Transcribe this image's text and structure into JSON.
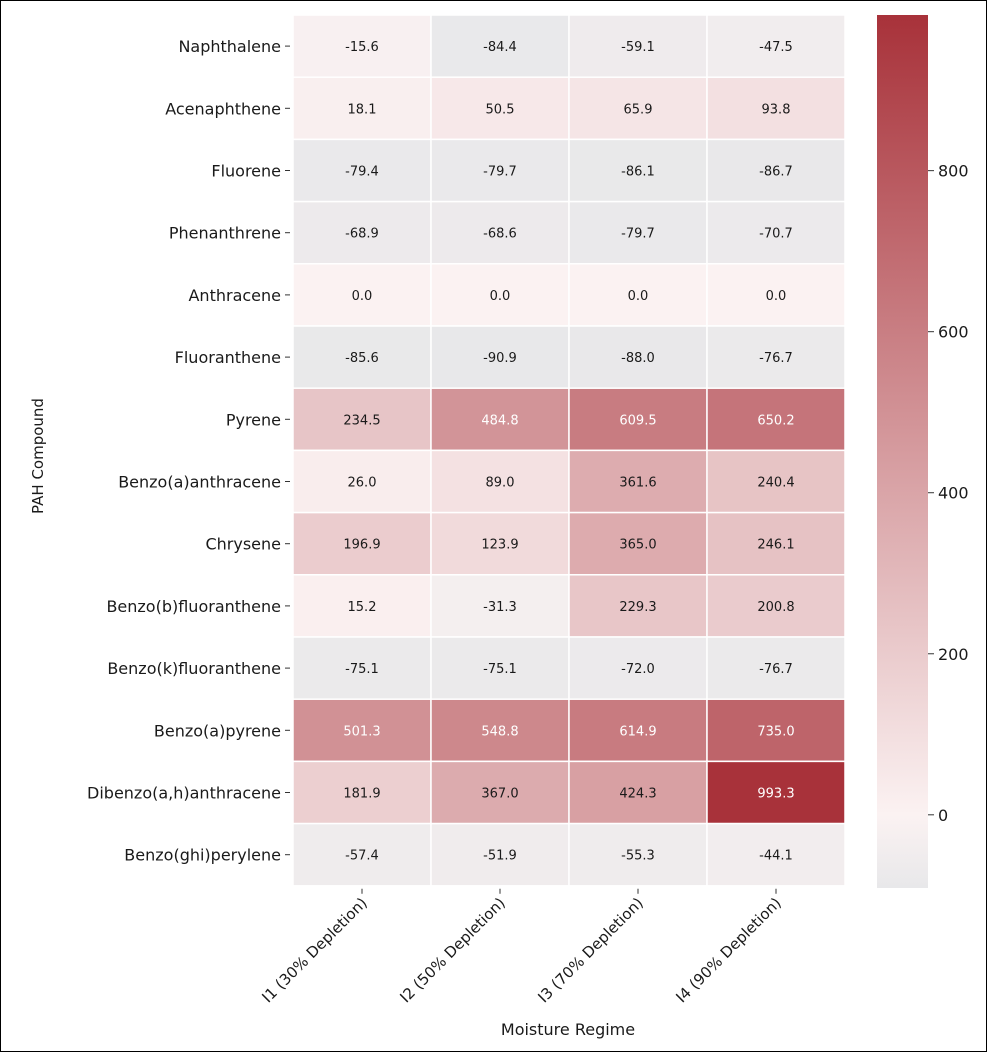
{
  "chart_data": {
    "type": "heatmap",
    "title": "",
    "xlabel": "Moisture Regime",
    "ylabel": "PAH Compound",
    "x_categories": [
      "I1 (30% Depletion)",
      "I2 (50% Depletion)",
      "I3 (70% Depletion)",
      "I4 (90% Depletion)"
    ],
    "y_categories": [
      "Naphthalene",
      "Acenaphthene",
      "Fluorene",
      "Phenanthrene",
      "Anthracene",
      "Fluoranthene",
      "Pyrene",
      "Benzo(a)anthracene",
      "Chrysene",
      "Benzo(b)fluoranthene",
      "Benzo(k)fluoranthene",
      "Benzo(a)pyrene",
      "Dibenzo(a,h)anthracene",
      "Benzo(ghi)perylene"
    ],
    "values": [
      [
        -15.6,
        -84.4,
        -59.1,
        -47.5
      ],
      [
        18.1,
        50.5,
        65.9,
        93.8
      ],
      [
        -79.4,
        -79.7,
        -86.1,
        -86.7
      ],
      [
        -68.9,
        -68.6,
        -79.7,
        -70.7
      ],
      [
        0.0,
        0.0,
        0.0,
        0.0
      ],
      [
        -85.6,
        -90.9,
        -88.0,
        -76.7
      ],
      [
        234.5,
        484.8,
        609.5,
        650.2
      ],
      [
        26.0,
        89.0,
        361.6,
        240.4
      ],
      [
        196.9,
        123.9,
        365.0,
        246.1
      ],
      [
        15.2,
        -31.3,
        229.3,
        200.8
      ],
      [
        -75.1,
        -75.1,
        -72.0,
        -76.7
      ],
      [
        501.3,
        548.8,
        614.9,
        735.0
      ],
      [
        181.9,
        367.0,
        424.3,
        993.3
      ],
      [
        -57.4,
        -51.9,
        -55.3,
        -44.1
      ]
    ],
    "colorbar": {
      "min": -90.9,
      "max": 993.3,
      "ticks": [
        0,
        200,
        400,
        600,
        800
      ],
      "tick_labels": [
        "0",
        "200",
        "400",
        "600",
        "800"
      ]
    },
    "colors": {
      "low": "#e8e8ea",
      "mid": "#fbf2f2",
      "high": "#a8323a",
      "light_text": "#ffffff",
      "dark_text": "#1a1a1a"
    },
    "grid": false,
    "legend": "colorbar right"
  }
}
